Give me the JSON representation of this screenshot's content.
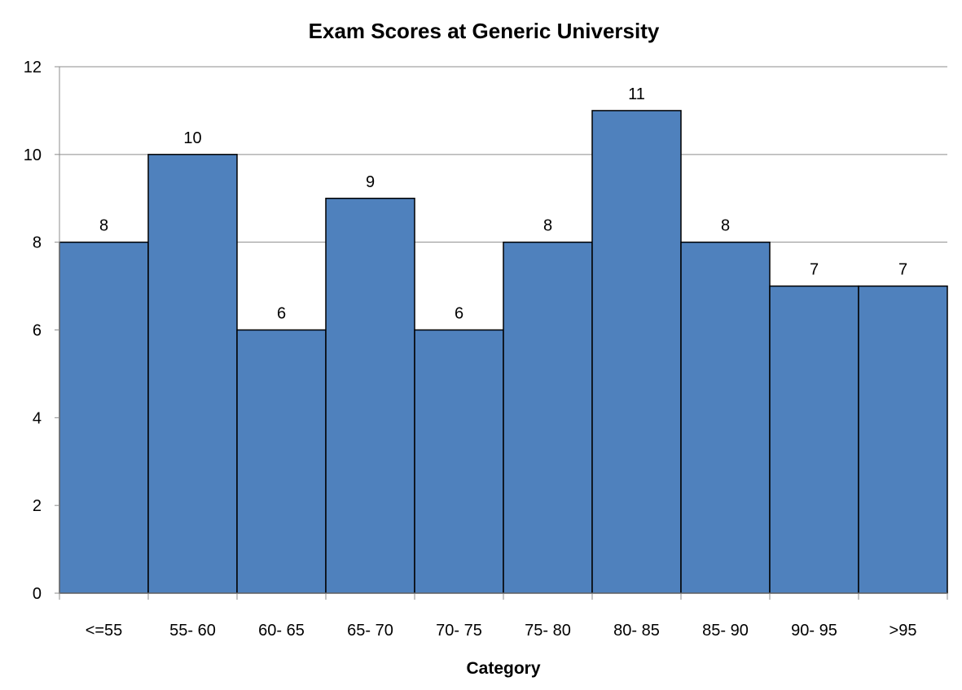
{
  "chart_data": {
    "type": "bar",
    "title": "Exam Scores at Generic University",
    "xlabel": "Category",
    "ylabel": "",
    "categories": [
      "<=55",
      "55- 60",
      "60- 65",
      "65- 70",
      "70- 75",
      "75- 80",
      "80- 85",
      "85- 90",
      "90- 95",
      ">95"
    ],
    "values": [
      8,
      10,
      6,
      9,
      6,
      8,
      11,
      8,
      7,
      7
    ],
    "ylim": [
      0,
      12
    ],
    "yticks": [
      0,
      2,
      4,
      6,
      8,
      10,
      12
    ],
    "grid": true,
    "legend": "none",
    "data_labels": true,
    "colors": {
      "bar_fill": "#4F81BD",
      "bar_stroke": "#000000",
      "grid": "#8C8C8C",
      "axis": "#8C8C8C"
    }
  }
}
